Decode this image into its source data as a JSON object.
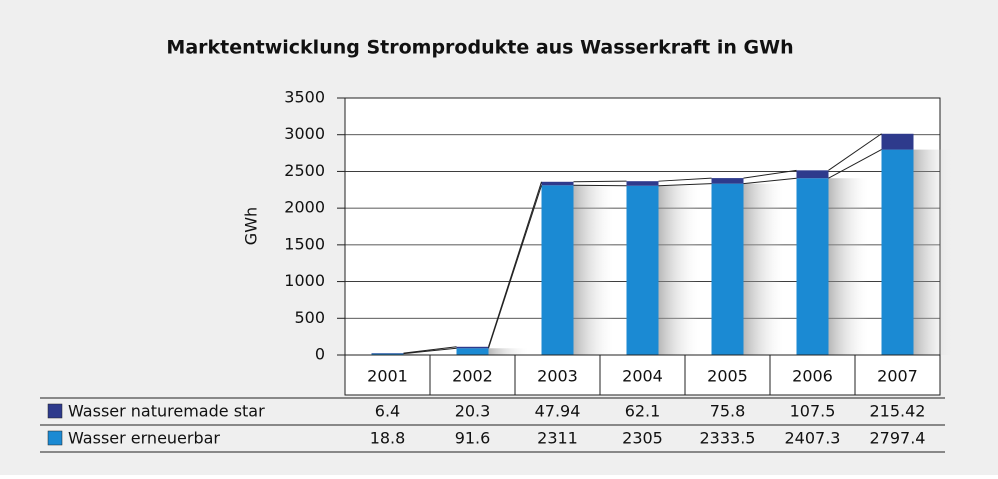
{
  "chart_data": {
    "type": "bar",
    "stacked": true,
    "title": "Marktentwicklung Stromprodukte aus Wasserkraft in GWh",
    "y_label": "GWh",
    "categories": [
      "2001",
      "2002",
      "2003",
      "2004",
      "2005",
      "2006",
      "2007"
    ],
    "series": [
      {
        "name": "Wasser naturemade star",
        "color": "#2e3a8c",
        "values": [
          6.4,
          20.3,
          47.94,
          62.1,
          75.8,
          107.5,
          215.42
        ]
      },
      {
        "name": "Wasser erneuerbar",
        "color": "#1b8ad3",
        "values": [
          18.8,
          91.6,
          2311,
          2305,
          2333.5,
          2407.3,
          2797.4
        ]
      }
    ],
    "ylim": [
      0,
      3500
    ],
    "yticks": [
      0,
      500,
      1000,
      1500,
      2000,
      2500,
      3000,
      3500
    ],
    "grid": true
  }
}
